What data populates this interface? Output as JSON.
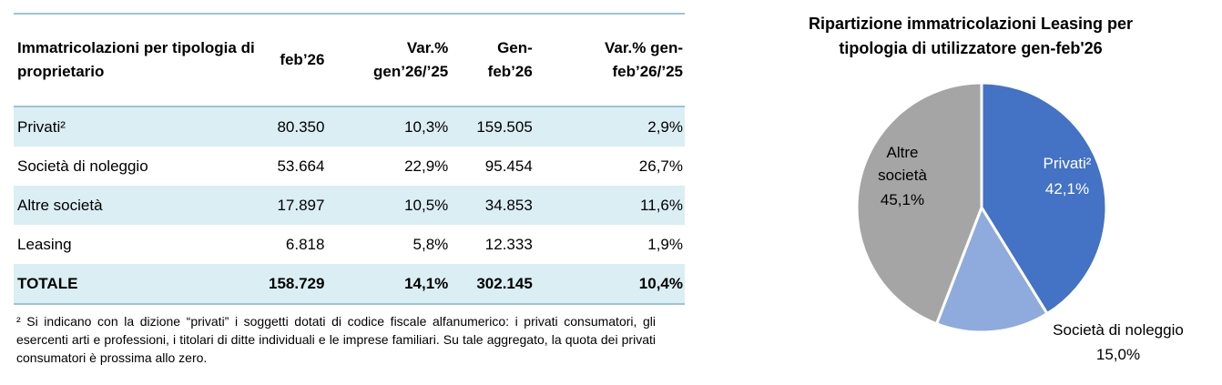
{
  "table": {
    "header": [
      "Immatricolazioni per tipologia di proprietario",
      "feb’26",
      "Var.% gen’26/’25",
      "Gen-feb’26",
      "Var.% gen-feb’26/’25"
    ],
    "rows": [
      [
        "Privati²",
        "80.350",
        "10,3%",
        "159.505",
        "2,9%"
      ],
      [
        "Società di noleggio",
        "53.664",
        "22,9%",
        "95.454",
        "26,7%"
      ],
      [
        "Altre società",
        "17.897",
        "10,5%",
        "34.853",
        "11,6%"
      ],
      [
        "Leasing",
        "6.818",
        "5,8%",
        "12.333",
        "1,9%"
      ],
      [
        "TOTALE",
        "158.729",
        "14,1%",
        "302.145",
        "10,4%"
      ]
    ],
    "footnote": "² Si indicano con la dizione “privati” i soggetti dotati di codice fiscale alfanumerico: i privati consumatori, gli esercenti arti e professioni, i titolari di ditte individuali e le imprese familiari. Su tale aggregato, la quota dei privati consumatori è prossima allo zero."
  },
  "chart_data": {
    "type": "pie",
    "title": "Ripartizione immatricolazioni Leasing per tipologia di utilizzatore gen-feb'26",
    "categories": [
      "Privati²",
      "Società di noleggio",
      "Altre società"
    ],
    "values": [
      42.1,
      15.0,
      45.1
    ],
    "value_labels": [
      "42,1%",
      "15,0%",
      "45,1%"
    ],
    "colors": [
      "#4472c4",
      "#8faadc",
      "#a5a5a5"
    ]
  }
}
